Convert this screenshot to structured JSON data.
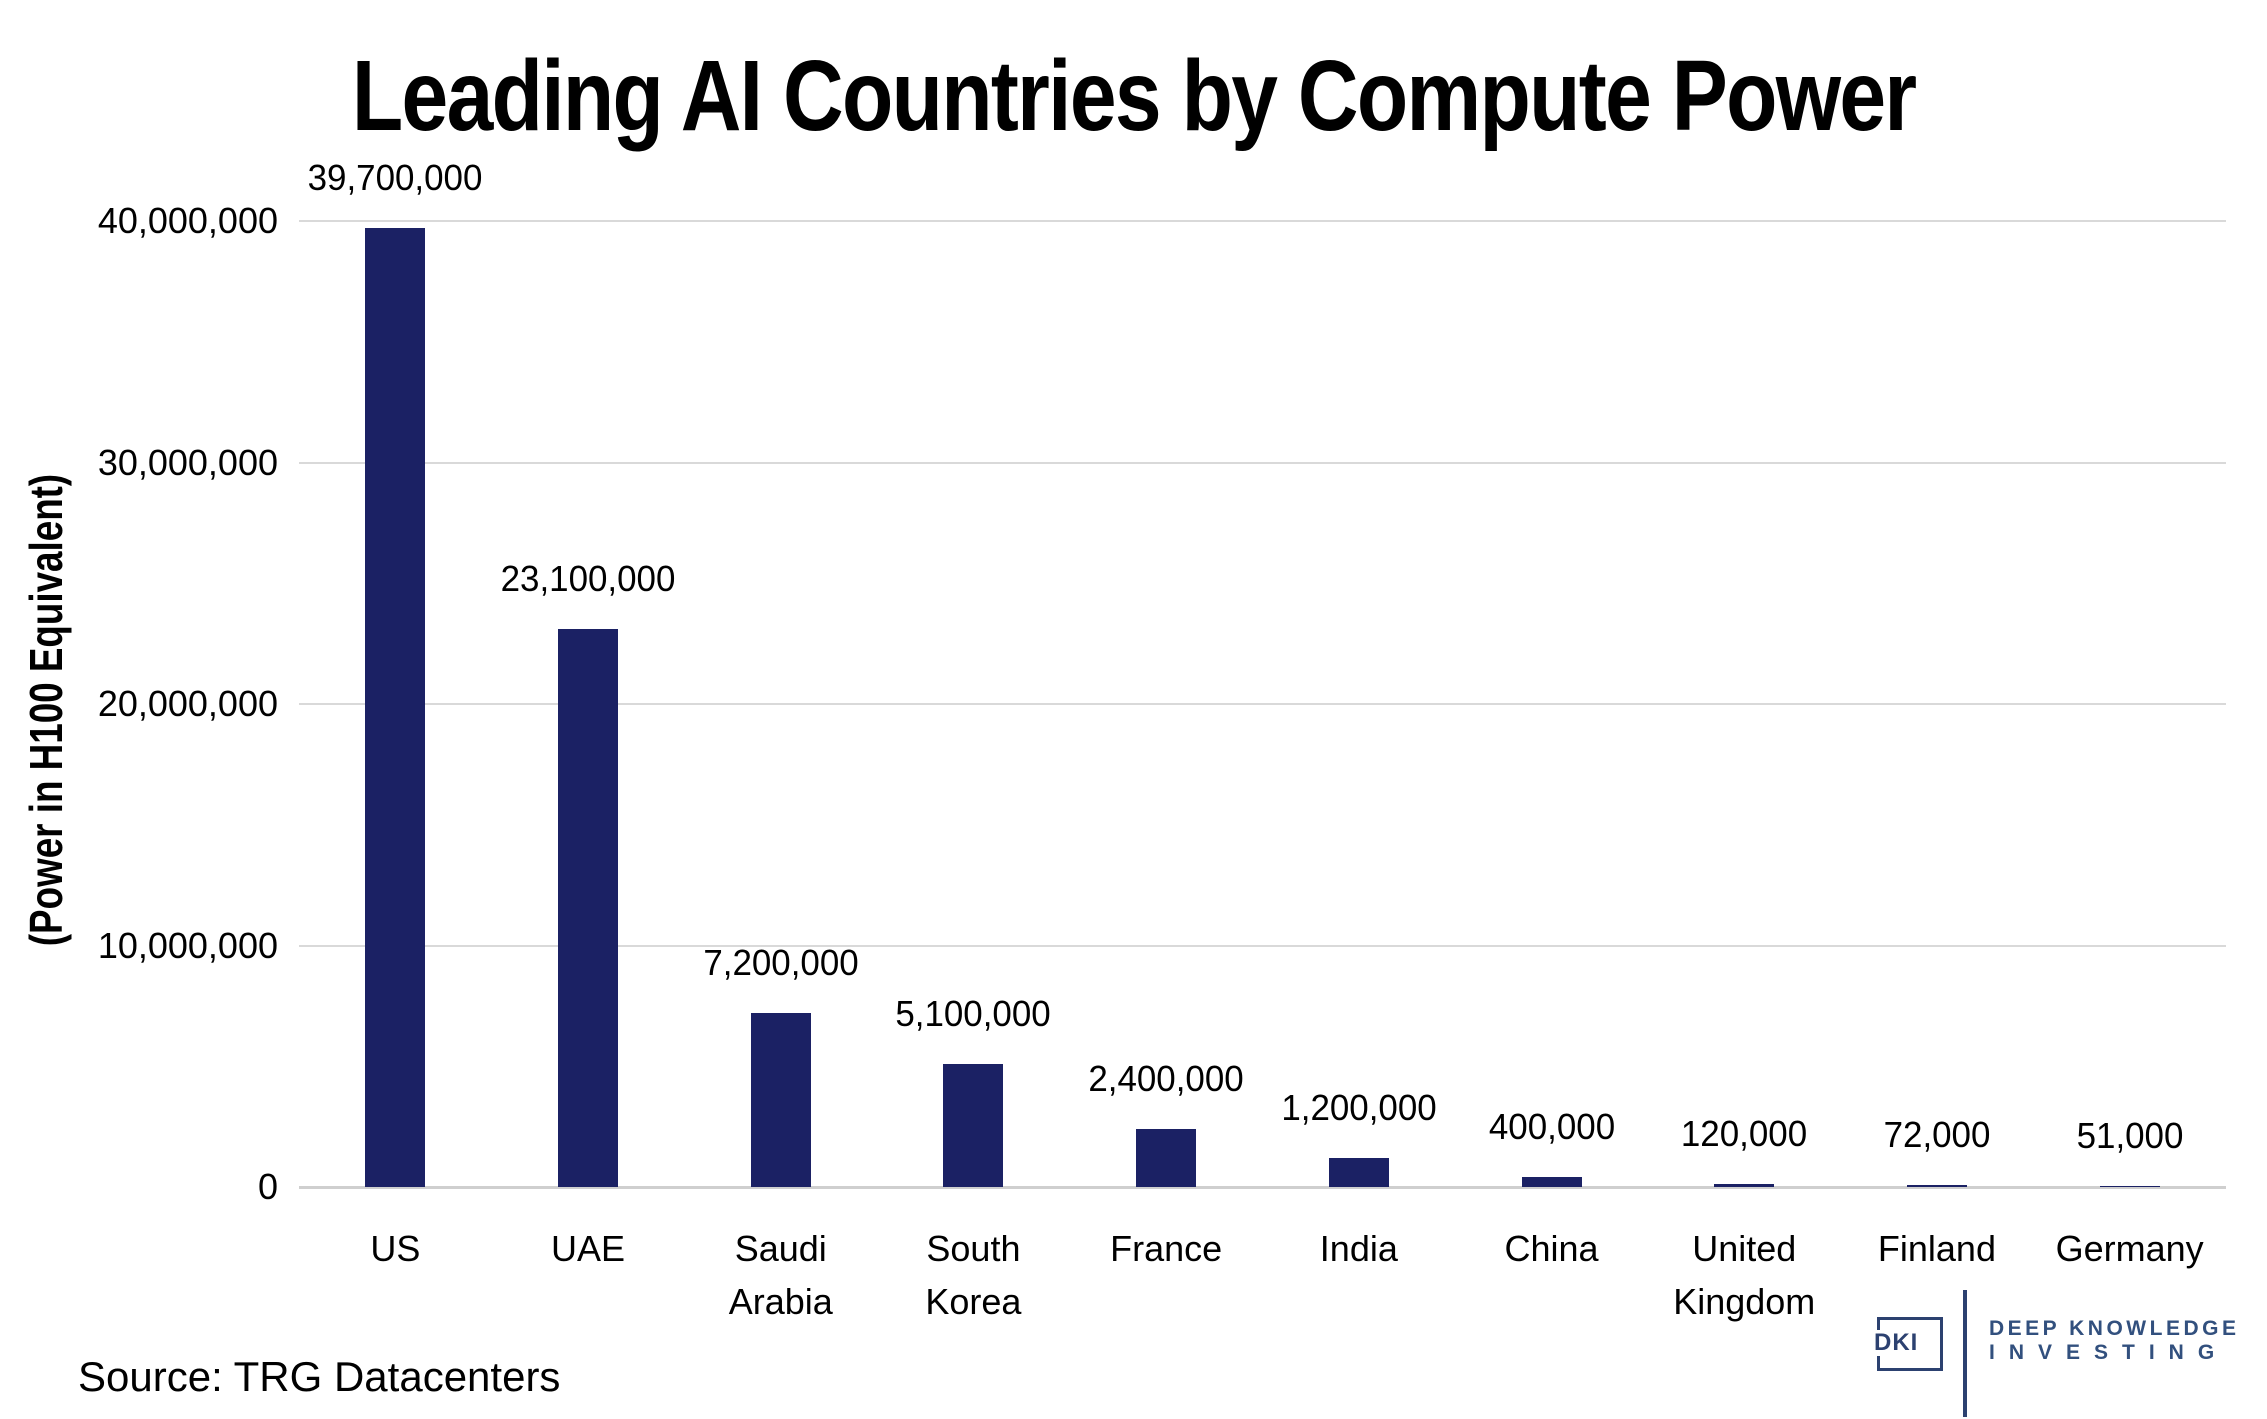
{
  "source": "Source: TRG Datacenters",
  "logo": {
    "badge": "DKI",
    "line1": "DEEP KNOWLEDGE",
    "line2": "INVESTING"
  },
  "chart_data": {
    "type": "bar",
    "title": "Leading AI Countries by Compute Power",
    "xlabel": "",
    "ylabel": "(Power in H100 Equivalent)",
    "categories": [
      "US",
      "UAE",
      "Saudi Arabia",
      "South Korea",
      "France",
      "India",
      "China",
      "United Kingdom",
      "Finland",
      "Germany"
    ],
    "category_label_lines": [
      [
        "US"
      ],
      [
        "UAE"
      ],
      [
        "Saudi",
        "Arabia"
      ],
      [
        "South",
        "Korea"
      ],
      [
        "France"
      ],
      [
        "India"
      ],
      [
        "China"
      ],
      [
        "United",
        "Kingdom"
      ],
      [
        "Finland"
      ],
      [
        "Germany"
      ]
    ],
    "values": [
      39700000,
      23100000,
      7200000,
      5100000,
      2400000,
      1200000,
      400000,
      120000,
      72000,
      51000
    ],
    "data_labels": [
      "39,700,000",
      "23,100,000",
      "7,200,000",
      "5,100,000",
      "2,400,000",
      "1,200,000",
      "400,000",
      "120,000",
      "72,000",
      "51,000"
    ],
    "ylim": [
      0,
      40000000
    ],
    "ytick_interval": 10000000,
    "ytick_values": [
      0,
      10000000,
      20000000,
      30000000,
      40000000
    ],
    "ytick_labels": [
      "0",
      "10,000,000",
      "20,000,000",
      "30,000,000",
      "40,000,000"
    ],
    "grid": "horizontal-only",
    "legend": "none",
    "bar_color": "#1b2164",
    "gridline_color": "#d9d9d9",
    "zero_line_color": "#cfcfcf",
    "text_color": "#000000"
  }
}
